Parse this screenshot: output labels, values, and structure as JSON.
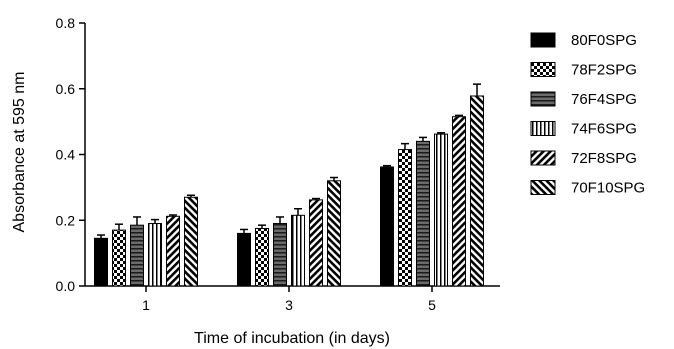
{
  "chart_data": {
    "type": "bar",
    "xlabel": "Time of incubation (in days)",
    "ylabel": "Absorbance at 595 nm",
    "ylim": [
      0,
      0.8
    ],
    "yticks": [
      "0.0",
      "0.2",
      "0.4",
      "0.6",
      "0.8"
    ],
    "categories": [
      "1",
      "3",
      "5"
    ],
    "legend_position": "right",
    "grid": false,
    "series": [
      {
        "name": "80F0SPG",
        "pattern": "solid",
        "values": [
          0.145,
          0.16,
          0.362
        ],
        "errors": [
          0.01,
          0.012,
          0.004
        ]
      },
      {
        "name": "78F2SPG",
        "pattern": "checker",
        "values": [
          0.17,
          0.175,
          0.415
        ],
        "errors": [
          0.018,
          0.01,
          0.018
        ]
      },
      {
        "name": "76F4SPG",
        "pattern": "horizontal",
        "values": [
          0.185,
          0.19,
          0.44
        ],
        "errors": [
          0.025,
          0.02,
          0.012
        ]
      },
      {
        "name": "74F6SPG",
        "pattern": "vertical",
        "values": [
          0.19,
          0.215,
          0.462
        ],
        "errors": [
          0.012,
          0.02,
          0.004
        ]
      },
      {
        "name": "72F8SPG",
        "pattern": "diag-back",
        "values": [
          0.212,
          0.262,
          0.515
        ],
        "errors": [
          0.004,
          0.004,
          0.004
        ]
      },
      {
        "name": "70F10SPG",
        "pattern": "diag-forward",
        "values": [
          0.27,
          0.32,
          0.578
        ],
        "errors": [
          0.006,
          0.01,
          0.036
        ]
      }
    ]
  }
}
